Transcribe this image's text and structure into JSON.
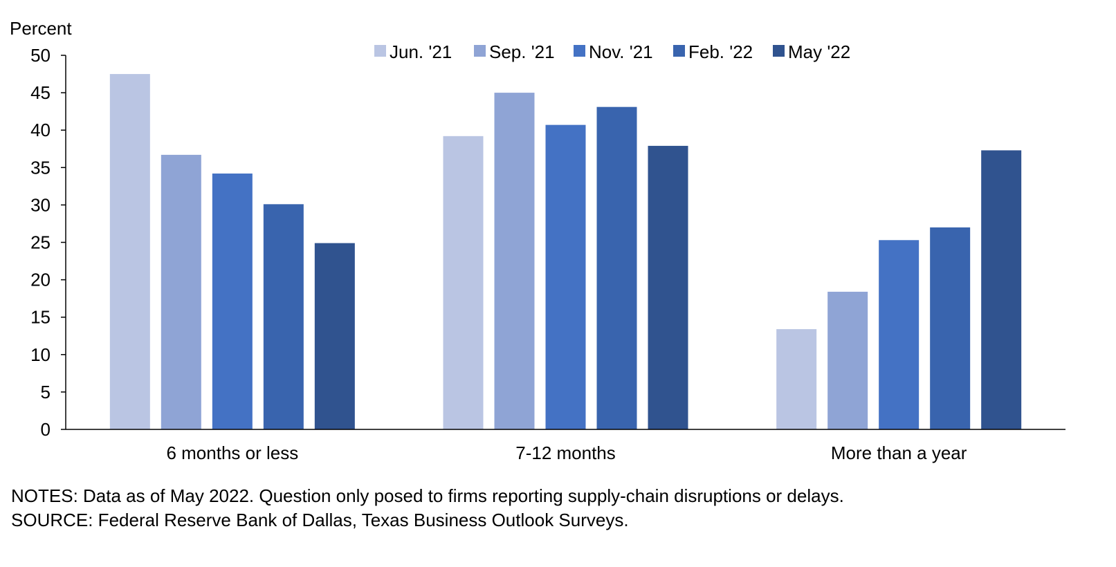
{
  "chart_data": {
    "type": "bar",
    "ylabel": "Percent",
    "ylim": [
      0,
      50
    ],
    "yticks": [
      0,
      5,
      10,
      15,
      20,
      25,
      30,
      35,
      40,
      45,
      50
    ],
    "categories": [
      "6 months or less",
      "7-12 months",
      "More than a year"
    ],
    "series": [
      {
        "name": "Jun. '21",
        "color": "#bac5e3",
        "values": [
          47.5,
          39.2,
          13.4
        ]
      },
      {
        "name": "Sep. '21",
        "color": "#8fa4d5",
        "values": [
          36.7,
          45.0,
          18.4
        ]
      },
      {
        "name": "Nov. '21",
        "color": "#4472c4",
        "values": [
          34.2,
          40.7,
          25.3
        ]
      },
      {
        "name": "Feb. '22",
        "color": "#3964ae",
        "values": [
          30.1,
          43.1,
          27.0
        ]
      },
      {
        "name": "May '22",
        "color": "#30538f",
        "values": [
          24.9,
          37.9,
          37.3
        ]
      }
    ],
    "grid": false,
    "legend": "top-right"
  },
  "notes": {
    "line1": "NOTES: Data as of May 2022. Question only posed to firms reporting supply-chain disruptions or delays.",
    "line2": "SOURCE: Federal Reserve Bank of Dallas, Texas Business Outlook Surveys."
  }
}
